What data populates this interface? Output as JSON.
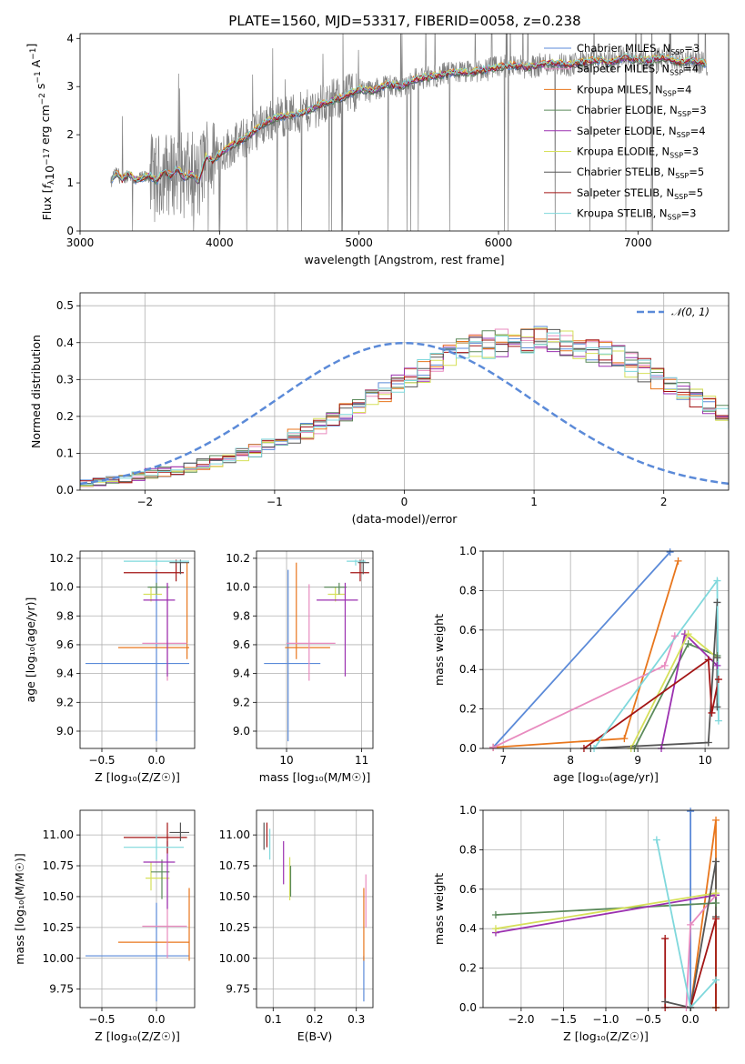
{
  "title": "PLATE=1560, MJD=53317, FIBERID=0058, z=0.238",
  "colors": {
    "chabrier_miles": "#5b8ad8",
    "salpeter_miles": "#e88bbf",
    "kroupa_miles": "#e8761c",
    "chabrier_elodie": "#5b8a5b",
    "salpeter_elodie": "#9b30b0",
    "kroupa_elodie": "#d6e05a",
    "chabrier_stelib": "#555555",
    "salpeter_stelib": "#a31515",
    "kroupa_stelib": "#7fd8dc",
    "data": "#808080",
    "gauss": "#5b8ad8"
  },
  "chart_data": [
    {
      "type": "line",
      "xlabel": "wavelength [Angstrom, rest frame]",
      "ylabel": "Flux [f_λ 10^-17 erg cm^-2 s^-1 A^-1]",
      "xlim": [
        3000,
        7650
      ],
      "ylim": [
        0,
        4.1
      ],
      "xticks": [
        "3000",
        "4000",
        "5000",
        "6000",
        "7000"
      ],
      "yticks": [
        "0",
        "1",
        "2",
        "3",
        "4"
      ],
      "legend_position": "right",
      "legend": [
        {
          "label": "Chabrier MILES, N_SSP=3",
          "color_key": "chabrier_miles"
        },
        {
          "label": "Salpeter MILES, N_SSP=4",
          "color_key": "salpeter_miles"
        },
        {
          "label": "Kroupa MILES, N_SSP=4",
          "color_key": "kroupa_miles"
        },
        {
          "label": "Chabrier ELODIE, N_SSP=3",
          "color_key": "chabrier_elodie"
        },
        {
          "label": "Salpeter ELODIE, N_SSP=4",
          "color_key": "salpeter_elodie"
        },
        {
          "label": "Kroupa ELODIE, N_SSP=3",
          "color_key": "kroupa_elodie"
        },
        {
          "label": "Chabrier STELIB, N_SSP=5",
          "color_key": "chabrier_stelib"
        },
        {
          "label": "Salpeter STELIB, N_SSP=5",
          "color_key": "salpeter_stelib"
        },
        {
          "label": "Kroupa STELIB, N_SSP=3",
          "color_key": "kroupa_stelib"
        }
      ],
      "continuum": {
        "x": [
          3220,
          3240,
          3270,
          3300,
          3350,
          3400,
          3450,
          3500,
          3550,
          3600,
          3650,
          3700,
          3750,
          3800,
          3850,
          3900,
          3950,
          4000,
          4100,
          4200,
          4300,
          4400,
          4500,
          4600,
          4700,
          4800,
          4900,
          5000,
          5100,
          5200,
          5300,
          5400,
          5500,
          5600,
          5700,
          5800,
          5900,
          6000,
          6100,
          6200,
          6300,
          6400,
          6500,
          6600,
          6700,
          6800,
          6900,
          7000,
          7100,
          7200,
          7300,
          7400,
          7500
        ],
        "y": [
          0.95,
          1.15,
          1.2,
          1.05,
          1.2,
          1.05,
          1.1,
          1.15,
          1.05,
          1.25,
          1.15,
          1.3,
          1.1,
          1.2,
          1.0,
          1.55,
          1.45,
          1.6,
          1.8,
          1.95,
          2.2,
          2.35,
          2.4,
          2.45,
          2.6,
          2.7,
          2.8,
          2.95,
          2.9,
          3.05,
          3.0,
          3.15,
          3.2,
          3.25,
          3.3,
          3.3,
          3.35,
          3.4,
          3.45,
          3.4,
          3.45,
          3.5,
          3.45,
          3.5,
          3.55,
          3.5,
          3.6,
          3.55,
          3.55,
          3.6,
          3.5,
          3.55,
          3.45
        ]
      }
    },
    {
      "type": "bar",
      "xlabel": "(data-model)/error",
      "ylabel": "Normed distribution",
      "xlim": [
        -2.5,
        2.5
      ],
      "ylim": [
        0,
        0.535
      ],
      "xticks": [
        "−2",
        "−1",
        "0",
        "1",
        "2"
      ],
      "yticks": [
        "0.0",
        "0.1",
        "0.2",
        "0.3",
        "0.4",
        "0.5"
      ],
      "legend_position": "upper right",
      "legend": [
        {
          "label": "𝒩(0, 1)",
          "style": "dashed",
          "color_key": "gauss"
        }
      ],
      "bin_edges_start": -2.5,
      "bin_width": 0.1,
      "hist_base": [
        0.018,
        0.022,
        0.028,
        0.032,
        0.038,
        0.045,
        0.05,
        0.055,
        0.062,
        0.07,
        0.078,
        0.087,
        0.097,
        0.108,
        0.12,
        0.132,
        0.146,
        0.16,
        0.175,
        0.19,
        0.21,
        0.225,
        0.245,
        0.265,
        0.285,
        0.305,
        0.325,
        0.345,
        0.36,
        0.375,
        0.385,
        0.395,
        0.4,
        0.405,
        0.41,
        0.41,
        0.405,
        0.4,
        0.39,
        0.38,
        0.37,
        0.36,
        0.34,
        0.325,
        0.305,
        0.29,
        0.27,
        0.25,
        0.23,
        0.21,
        0.19,
        0.175,
        0.16,
        0.14,
        0.125,
        0.11,
        0.1,
        0.09,
        0.08,
        0.07,
        0.062,
        0.055,
        0.05,
        0.045,
        0.04,
        0.035,
        0.032,
        0.03,
        0.028,
        0.025
      ]
    },
    {
      "type": "scatter",
      "panel": "age_vs_Z",
      "xlabel": "Z [log₁₀(Z/Z☉)]",
      "ylabel": "age  [log₁₀(age/yr)]",
      "xlim": [
        -0.7,
        0.35
      ],
      "ylim": [
        8.88,
        10.25
      ],
      "xticks": [
        "−0.5",
        "0.0"
      ],
      "yticks": [
        "9.0",
        "9.2",
        "9.4",
        "9.6",
        "9.8",
        "10.0",
        "10.2"
      ],
      "points": [
        {
          "k": "chabrier_miles",
          "x": 0.0,
          "xlo": -0.65,
          "xhi": 0.3,
          "y": 9.47,
          "ylo": 8.93,
          "yhi": 10.12
        },
        {
          "k": "kroupa_miles",
          "x": 0.28,
          "xlo": -0.35,
          "xhi": 0.3,
          "y": 9.58,
          "ylo": 9.5,
          "yhi": 10.17
        },
        {
          "k": "salpeter_miles",
          "x": 0.1,
          "xlo": -0.13,
          "xhi": 0.28,
          "y": 9.61,
          "ylo": 9.35,
          "yhi": 10.02
        },
        {
          "k": "kroupa_elodie",
          "x": -0.05,
          "xlo": -0.12,
          "xhi": 0.05,
          "y": 9.95,
          "ylo": 9.9,
          "yhi": 10.0
        },
        {
          "k": "chabrier_elodie",
          "x": 0.0,
          "xlo": -0.08,
          "xhi": 0.12,
          "y": 10.0,
          "ylo": 9.95,
          "yhi": 10.03
        },
        {
          "k": "salpeter_elodie",
          "x": 0.1,
          "xlo": -0.12,
          "xhi": 0.17,
          "y": 9.91,
          "ylo": 9.38,
          "yhi": 10.03
        },
        {
          "k": "salpeter_stelib",
          "x": 0.18,
          "xlo": -0.3,
          "xhi": 0.25,
          "y": 10.1,
          "ylo": 10.04,
          "yhi": 10.19
        },
        {
          "k": "chabrier_stelib",
          "x": 0.22,
          "xlo": 0.12,
          "xhi": 0.3,
          "y": 10.17,
          "ylo": 10.09,
          "yhi": 10.19
        },
        {
          "k": "kroupa_stelib",
          "x": 0.0,
          "xlo": -0.3,
          "xhi": 0.3,
          "y": 10.18,
          "ylo": 10.15,
          "yhi": 10.19
        }
      ]
    },
    {
      "type": "scatter",
      "panel": "age_vs_mass",
      "xlabel": "mass [log₁₀(M/M☉)]",
      "yticks": [
        "9.0",
        "9.2",
        "9.4",
        "9.6",
        "9.8",
        "10.0",
        "10.2"
      ],
      "xlim": [
        9.6,
        11.15
      ],
      "ylim": [
        8.88,
        10.25
      ],
      "xticks": [
        "10",
        "11"
      ],
      "points": [
        {
          "k": "chabrier_miles",
          "x": 10.02,
          "xlo": 9.7,
          "xhi": 10.45,
          "y": 9.47,
          "ylo": 8.93,
          "yhi": 10.12
        },
        {
          "k": "kroupa_miles",
          "x": 10.13,
          "xlo": 9.98,
          "xhi": 10.58,
          "y": 9.58,
          "ylo": 9.5,
          "yhi": 10.17
        },
        {
          "k": "salpeter_miles",
          "x": 10.3,
          "xlo": 10.0,
          "xhi": 10.65,
          "y": 9.61,
          "ylo": 9.35,
          "yhi": 10.02
        },
        {
          "k": "kroupa_elodie",
          "x": 10.65,
          "xlo": 10.55,
          "xhi": 10.78,
          "y": 9.95,
          "ylo": 9.9,
          "yhi": 10.0
        },
        {
          "k": "chabrier_elodie",
          "x": 10.7,
          "xlo": 10.5,
          "xhi": 10.8,
          "y": 10.0,
          "ylo": 9.95,
          "yhi": 10.03
        },
        {
          "k": "salpeter_elodie",
          "x": 10.78,
          "xlo": 10.4,
          "xhi": 10.95,
          "y": 9.91,
          "ylo": 9.38,
          "yhi": 10.03
        },
        {
          "k": "salpeter_stelib",
          "x": 10.98,
          "xlo": 10.85,
          "xhi": 11.1,
          "y": 10.1,
          "ylo": 10.04,
          "yhi": 10.19
        },
        {
          "k": "chabrier_stelib",
          "x": 11.02,
          "xlo": 10.95,
          "xhi": 11.1,
          "y": 10.17,
          "ylo": 10.09,
          "yhi": 10.19
        },
        {
          "k": "kroupa_stelib",
          "x": 10.92,
          "xlo": 10.8,
          "xhi": 11.05,
          "y": 10.18,
          "ylo": 10.15,
          "yhi": 10.19
        }
      ]
    },
    {
      "type": "line",
      "panel": "mass_weight_vs_age",
      "xlabel": "age  [log₁₀(age/yr)]",
      "ylabel": "mass weight",
      "xlim": [
        6.7,
        10.35
      ],
      "ylim": [
        0,
        1.0
      ],
      "xticks": [
        "7",
        "8",
        "9",
        "10"
      ],
      "yticks": [
        "0.0",
        "0.2",
        "0.4",
        "0.6",
        "0.8",
        "1.0"
      ],
      "series": [
        {
          "k": "chabrier_miles",
          "x": [
            6.85,
            9.48
          ],
          "y": [
            0.005,
            0.995
          ]
        },
        {
          "k": "kroupa_miles",
          "x": [
            6.85,
            8.8,
            9.6
          ],
          "y": [
            0.005,
            0.05,
            0.95
          ]
        },
        {
          "k": "salpeter_miles",
          "x": [
            6.85,
            9.4,
            9.55
          ],
          "y": [
            0.005,
            0.42,
            0.57
          ]
        },
        {
          "k": "chabrier_elodie",
          "x": [
            8.95,
            9.75,
            10.18
          ],
          "y": [
            0.0,
            0.53,
            0.47
          ]
        },
        {
          "k": "salpeter_elodie",
          "x": [
            9.35,
            9.7,
            10.18
          ],
          "y": [
            0.0,
            0.58,
            0.42
          ]
        },
        {
          "k": "kroupa_elodie",
          "x": [
            8.9,
            9.75,
            10.18
          ],
          "y": [
            0.0,
            0.58,
            0.46
          ]
        },
        {
          "k": "chabrier_stelib",
          "x": [
            8.3,
            10.05,
            10.18,
            10.18,
            10.18
          ],
          "y": [
            0.0,
            0.03,
            0.74,
            0.46,
            0.21
          ]
        },
        {
          "k": "salpeter_stelib",
          "x": [
            8.2,
            10.05,
            10.1,
            10.2
          ],
          "y": [
            0.0,
            0.45,
            0.18,
            0.35
          ]
        },
        {
          "k": "kroupa_stelib",
          "x": [
            8.35,
            10.18,
            10.2
          ],
          "y": [
            0.0,
            0.85,
            0.14
          ]
        }
      ]
    },
    {
      "type": "scatter",
      "panel": "mass_vs_Z",
      "xlabel": "Z [log₁₀(Z/Z☉)]",
      "ylabel": "mass [log₁₀(M/M☉)]",
      "xlim": [
        -0.7,
        0.35
      ],
      "ylim": [
        9.6,
        11.2
      ],
      "xticks": [
        "−0.5",
        "0.0"
      ],
      "yticks": [
        "9.75",
        "10.00",
        "10.25",
        "10.50",
        "10.75",
        "11.00"
      ],
      "points": [
        {
          "k": "chabrier_miles",
          "x": 0.0,
          "xlo": -0.65,
          "xhi": 0.3,
          "y": 10.02,
          "ylo": 9.65,
          "yhi": 10.45
        },
        {
          "k": "kroupa_miles",
          "x": 0.3,
          "xlo": -0.35,
          "xhi": 0.3,
          "y": 10.13,
          "ylo": 9.98,
          "yhi": 10.57
        },
        {
          "k": "salpeter_miles",
          "x": 0.1,
          "xlo": -0.13,
          "xhi": 0.28,
          "y": 10.26,
          "ylo": 10.0,
          "yhi": 10.65
        },
        {
          "k": "kroupa_elodie",
          "x": -0.05,
          "xlo": -0.1,
          "xhi": 0.12,
          "y": 10.65,
          "ylo": 10.55,
          "yhi": 10.78
        },
        {
          "k": "chabrier_elodie",
          "x": 0.05,
          "xlo": -0.05,
          "xhi": 0.12,
          "y": 10.7,
          "ylo": 10.48,
          "yhi": 10.8
        },
        {
          "k": "salpeter_elodie",
          "x": 0.1,
          "xlo": -0.12,
          "xhi": 0.17,
          "y": 10.78,
          "ylo": 10.4,
          "yhi": 10.95
        },
        {
          "k": "salpeter_stelib",
          "x": 0.1,
          "xlo": -0.3,
          "xhi": 0.28,
          "y": 10.98,
          "ylo": 10.85,
          "yhi": 11.1
        },
        {
          "k": "chabrier_stelib",
          "x": 0.22,
          "xlo": 0.12,
          "xhi": 0.3,
          "y": 11.02,
          "ylo": 10.95,
          "yhi": 11.1
        },
        {
          "k": "kroupa_stelib",
          "x": 0.0,
          "xlo": -0.3,
          "xhi": 0.25,
          "y": 10.9,
          "ylo": 10.8,
          "yhi": 11.0
        }
      ]
    },
    {
      "type": "scatter",
      "panel": "mass_vs_ebv",
      "xlabel": "E(B-V)",
      "xlim": [
        0.06,
        0.34
      ],
      "ylim": [
        9.6,
        11.2
      ],
      "xticks": [
        "0.1",
        "0.2",
        "0.3"
      ],
      "yticks": [
        "9.75",
        "10.00",
        "10.25",
        "10.50",
        "10.75",
        "11.00"
      ],
      "points": [
        {
          "k": "chabrier_miles",
          "x": 0.318,
          "ylo": 9.65,
          "yhi": 10.02
        },
        {
          "k": "kroupa_miles",
          "x": 0.318,
          "ylo": 9.98,
          "yhi": 10.57
        },
        {
          "k": "salpeter_miles",
          "x": 0.323,
          "ylo": 10.25,
          "yhi": 10.68
        },
        {
          "k": "kroupa_elodie",
          "x": 0.14,
          "ylo": 10.47,
          "yhi": 10.82
        },
        {
          "k": "chabrier_elodie",
          "x": 0.142,
          "ylo": 10.5,
          "yhi": 10.75
        },
        {
          "k": "salpeter_elodie",
          "x": 0.125,
          "ylo": 10.6,
          "yhi": 10.95
        },
        {
          "k": "chabrier_stelib",
          "x": 0.078,
          "ylo": 10.88,
          "yhi": 11.1
        },
        {
          "k": "salpeter_stelib",
          "x": 0.085,
          "ylo": 10.9,
          "yhi": 11.1
        },
        {
          "k": "kroupa_stelib",
          "x": 0.092,
          "ylo": 10.8,
          "yhi": 11.05
        }
      ]
    },
    {
      "type": "line",
      "panel": "mass_weight_vs_Z",
      "xlabel": "Z [log₁₀(Z/Z☉)]",
      "ylabel": "mass weight",
      "xlim": [
        -2.45,
        0.45
      ],
      "ylim": [
        0,
        1.0
      ],
      "xticks": [
        "−2.0",
        "−1.5",
        "−1.0",
        "−0.5",
        "0.0"
      ],
      "yticks": [
        "0.0",
        "0.2",
        "0.4",
        "0.6",
        "0.8",
        "1.0"
      ],
      "series": [
        {
          "k": "chabrier_miles",
          "x": [
            0.0,
            0.0
          ],
          "y": [
            0.0,
            0.995
          ]
        },
        {
          "k": "kroupa_miles",
          "x": [
            0.0,
            0.3,
            0.3
          ],
          "y": [
            0.0,
            0.95,
            0.0
          ]
        },
        {
          "k": "salpeter_miles",
          "x": [
            -0.05,
            0.0,
            0.3
          ],
          "y": [
            0.0,
            0.42,
            0.57
          ]
        },
        {
          "k": "chabrier_elodie",
          "x": [
            -2.3,
            0.3
          ],
          "y": [
            0.47,
            0.53
          ]
        },
        {
          "k": "salpeter_elodie",
          "x": [
            -2.3,
            0.3
          ],
          "y": [
            0.38,
            0.57
          ]
        },
        {
          "k": "kroupa_elodie",
          "x": [
            -2.3,
            0.3,
            0.3
          ],
          "y": [
            0.4,
            0.58,
            0.0
          ]
        },
        {
          "k": "chabrier_stelib",
          "x": [
            -0.3,
            0.0,
            0.3,
            0.3
          ],
          "y": [
            0.03,
            0.0,
            0.74,
            0.46
          ]
        },
        {
          "k": "salpeter_stelib",
          "x": [
            -0.3,
            -0.3,
            0.0,
            0.3,
            0.3
          ],
          "y": [
            0.35,
            0.0,
            0.0,
            0.45,
            0.0
          ]
        },
        {
          "k": "kroupa_stelib",
          "x": [
            -0.4,
            0.0,
            0.3
          ],
          "y": [
            0.85,
            0.0,
            0.14
          ]
        }
      ]
    }
  ]
}
